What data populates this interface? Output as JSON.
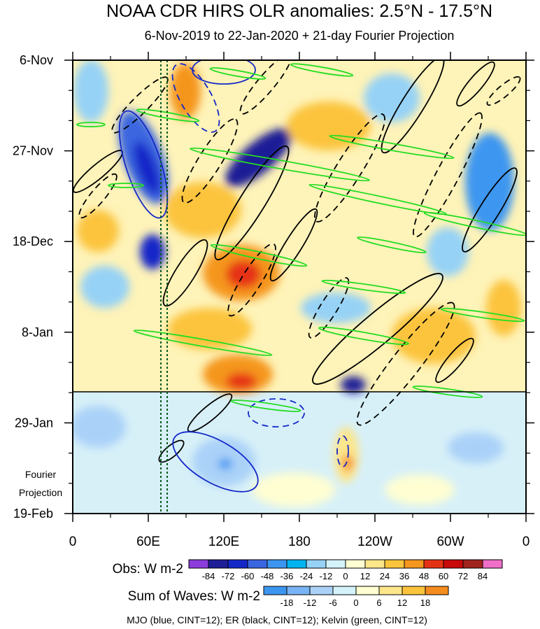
{
  "chart_data": {
    "type": "heatmap",
    "title": "NOAA CDR HIRS OLR anomalies: 2.5°N - 17.5°N",
    "subtitle": "6-Nov-2019 to 22-Jan-2020 + 21-day Fourier Projection",
    "y_tick_labels": [
      "6-Nov",
      "27-Nov",
      "18-Dec",
      "8-Jan",
      "29-Jan",
      "19-Feb"
    ],
    "y_range": [
      "6-Nov-2019",
      "19-Feb-2020"
    ],
    "observation_end": "22-Jan-2020",
    "projection_label": [
      "Fourier",
      "Projection"
    ],
    "x_tick_labels": [
      "0",
      "60E",
      "120E",
      "180",
      "120W",
      "60W",
      "0"
    ],
    "x_tick_lon": [
      0,
      60,
      120,
      180,
      240,
      300,
      360
    ],
    "x_range": [
      0,
      360
    ],
    "reference_lon_lines": [
      70,
      75
    ],
    "obs_colorbar": {
      "label": "Obs: W m-2",
      "levels": [
        "-84",
        "-72",
        "-60",
        "-48",
        "-36",
        "-24",
        "-12",
        "0",
        "12",
        "24",
        "36",
        "48",
        "60",
        "72",
        "84"
      ],
      "colors": [
        "#8c3cdc",
        "#1e1e96",
        "#1428c8",
        "#3a66e0",
        "#3c96f0",
        "#00b4f0",
        "#96d2f6",
        "#d4f2fa",
        "#fefed2",
        "#fde68a",
        "#fcc43c",
        "#f5961e",
        "#e63214",
        "#c80a0a",
        "#a0231e",
        "#ee6ec8"
      ]
    },
    "waves_colorbar": {
      "label": "Sum of Waves: W m-2",
      "levels": [
        "-18",
        "-12",
        "-6",
        "0",
        "6",
        "12",
        "18"
      ],
      "colors": [
        "#3c96f0",
        "#78b4f5",
        "#aad2f8",
        "#d4f2fa",
        "#fefed2",
        "#fde68a",
        "#fcc43c",
        "#f58c1e"
      ]
    },
    "contour_legend": "MJO (blue, CINT=12); ER (black, CINT=12); Kelvin (green, CINT=12)",
    "contour_colors": {
      "mjo": "#1428c8",
      "er": "#000000",
      "kelvin": "#22dd22"
    }
  }
}
